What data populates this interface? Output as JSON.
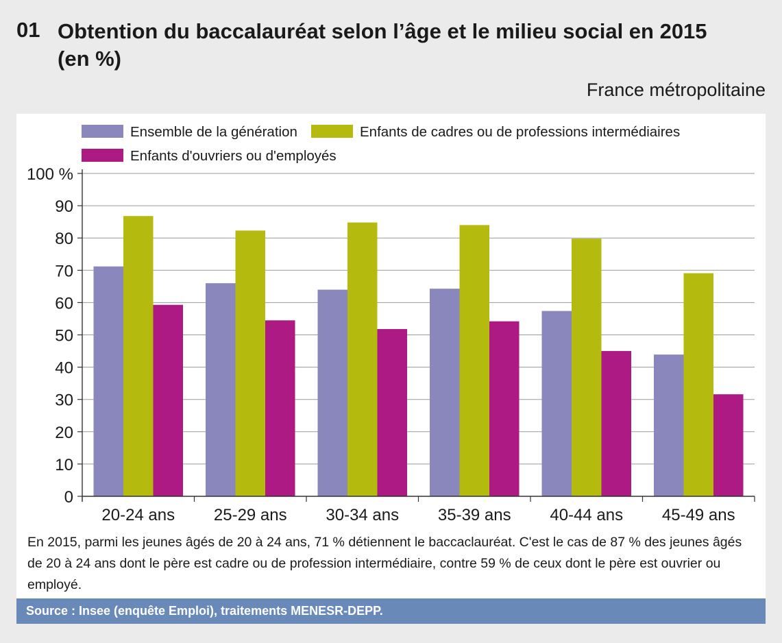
{
  "figure": {
    "number": "01",
    "title": "Obtention du baccalauréat selon l’âge et le milieu social en 2015 (en %)",
    "area": "France métropolitaine",
    "note": "En 2015, parmi les jeunes âgés de 20 à 24 ans, 71 % détiennent le baccaclauréat. C'est le cas de 87 % des jeunes âgés de 20 à 24 ans dont le père est cadre ou de profession intermédiaire, contre 59 % de ceux dont le père est ouvrier ou employé.",
    "source": "Source : Insee (enquête Emploi), traitements MENESR-DEPP."
  },
  "chart_data": {
    "type": "bar",
    "categories": [
      "20-24 ans",
      "25-29 ans",
      "30-34 ans",
      "35-39 ans",
      "40-44 ans",
      "45-49 ans"
    ],
    "series": [
      {
        "name": "Ensemble de la génération",
        "color": "#8a87bd",
        "values": [
          71.2,
          66.0,
          64.0,
          64.3,
          57.4,
          43.9
        ]
      },
      {
        "name": "Enfants de cadres ou de professions intermédiaires",
        "color": "#b4bb0e",
        "values": [
          86.8,
          82.3,
          84.8,
          84.0,
          79.8,
          69.1
        ]
      },
      {
        "name": "Enfants d'ouvriers ou d'employés",
        "color": "#ad1a84",
        "values": [
          59.3,
          54.5,
          51.8,
          54.2,
          45.0,
          31.6
        ]
      }
    ],
    "ylim": [
      0,
      100
    ],
    "yticks": [
      0,
      10,
      20,
      30,
      40,
      50,
      60,
      70,
      80,
      90,
      100
    ],
    "ytick_labels": [
      "0",
      "10",
      "20",
      "30",
      "40",
      "50",
      "60",
      "70",
      "80",
      "90",
      "100 %"
    ],
    "grid": true,
    "legend_position": "top-left"
  }
}
